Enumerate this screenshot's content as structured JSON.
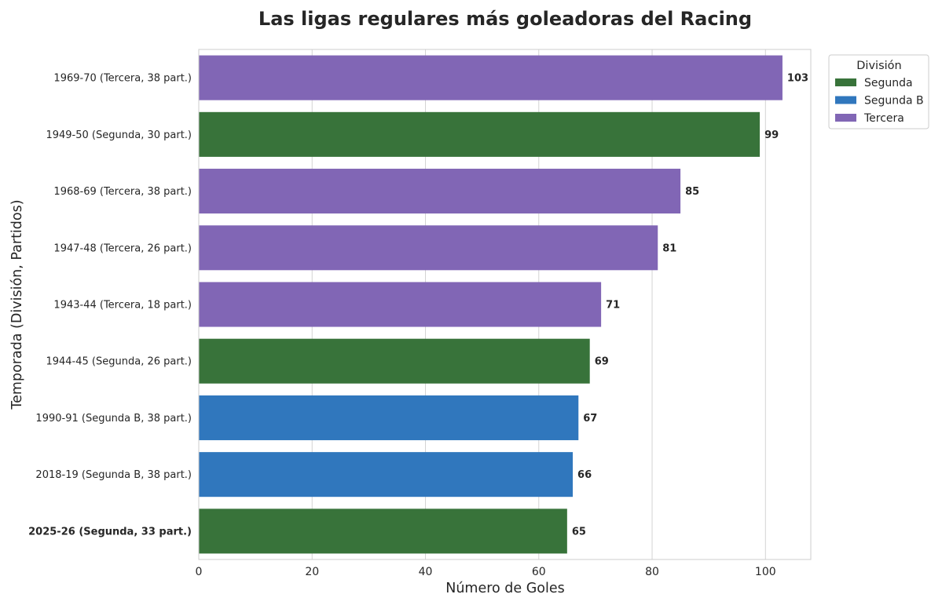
{
  "chart_data": {
    "type": "bar",
    "orientation": "horizontal",
    "title": "Las ligas regulares más goleadoras del Racing",
    "xlabel": "Número de Goles",
    "ylabel": "Temporada (División, Partidos)",
    "xlim": [
      0,
      108
    ],
    "xticks": [
      0,
      20,
      40,
      60,
      80,
      100
    ],
    "grid": "vertical",
    "legend": {
      "title": "División",
      "placement": "outside-top-right",
      "entries": [
        {
          "label": "Segunda",
          "color": "#38733a"
        },
        {
          "label": "Segunda B",
          "color": "#3077bd"
        },
        {
          "label": "Tercera",
          "color": "#8166b5"
        }
      ]
    },
    "categories": [
      "1969-70 (Tercera, 38 part.)",
      "1949-50 (Segunda, 30 part.)",
      "1968-69 (Tercera, 38 part.)",
      "1947-48 (Tercera, 26 part.)",
      "1943-44 (Tercera, 18 part.)",
      "1944-45 (Segunda, 26 part.)",
      "1990-91 (Segunda B, 38 part.)",
      "2018-19 (Segunda B, 38 part.)",
      "2025-26 (Segunda, 33 part.)"
    ],
    "values": [
      103,
      99,
      85,
      81,
      71,
      69,
      67,
      66,
      65
    ],
    "division": [
      "Tercera",
      "Segunda",
      "Tercera",
      "Tercera",
      "Tercera",
      "Segunda",
      "Segunda B",
      "Segunda B",
      "Segunda"
    ],
    "highlighted_category": "2025-26 (Segunda, 33 part.)"
  }
}
